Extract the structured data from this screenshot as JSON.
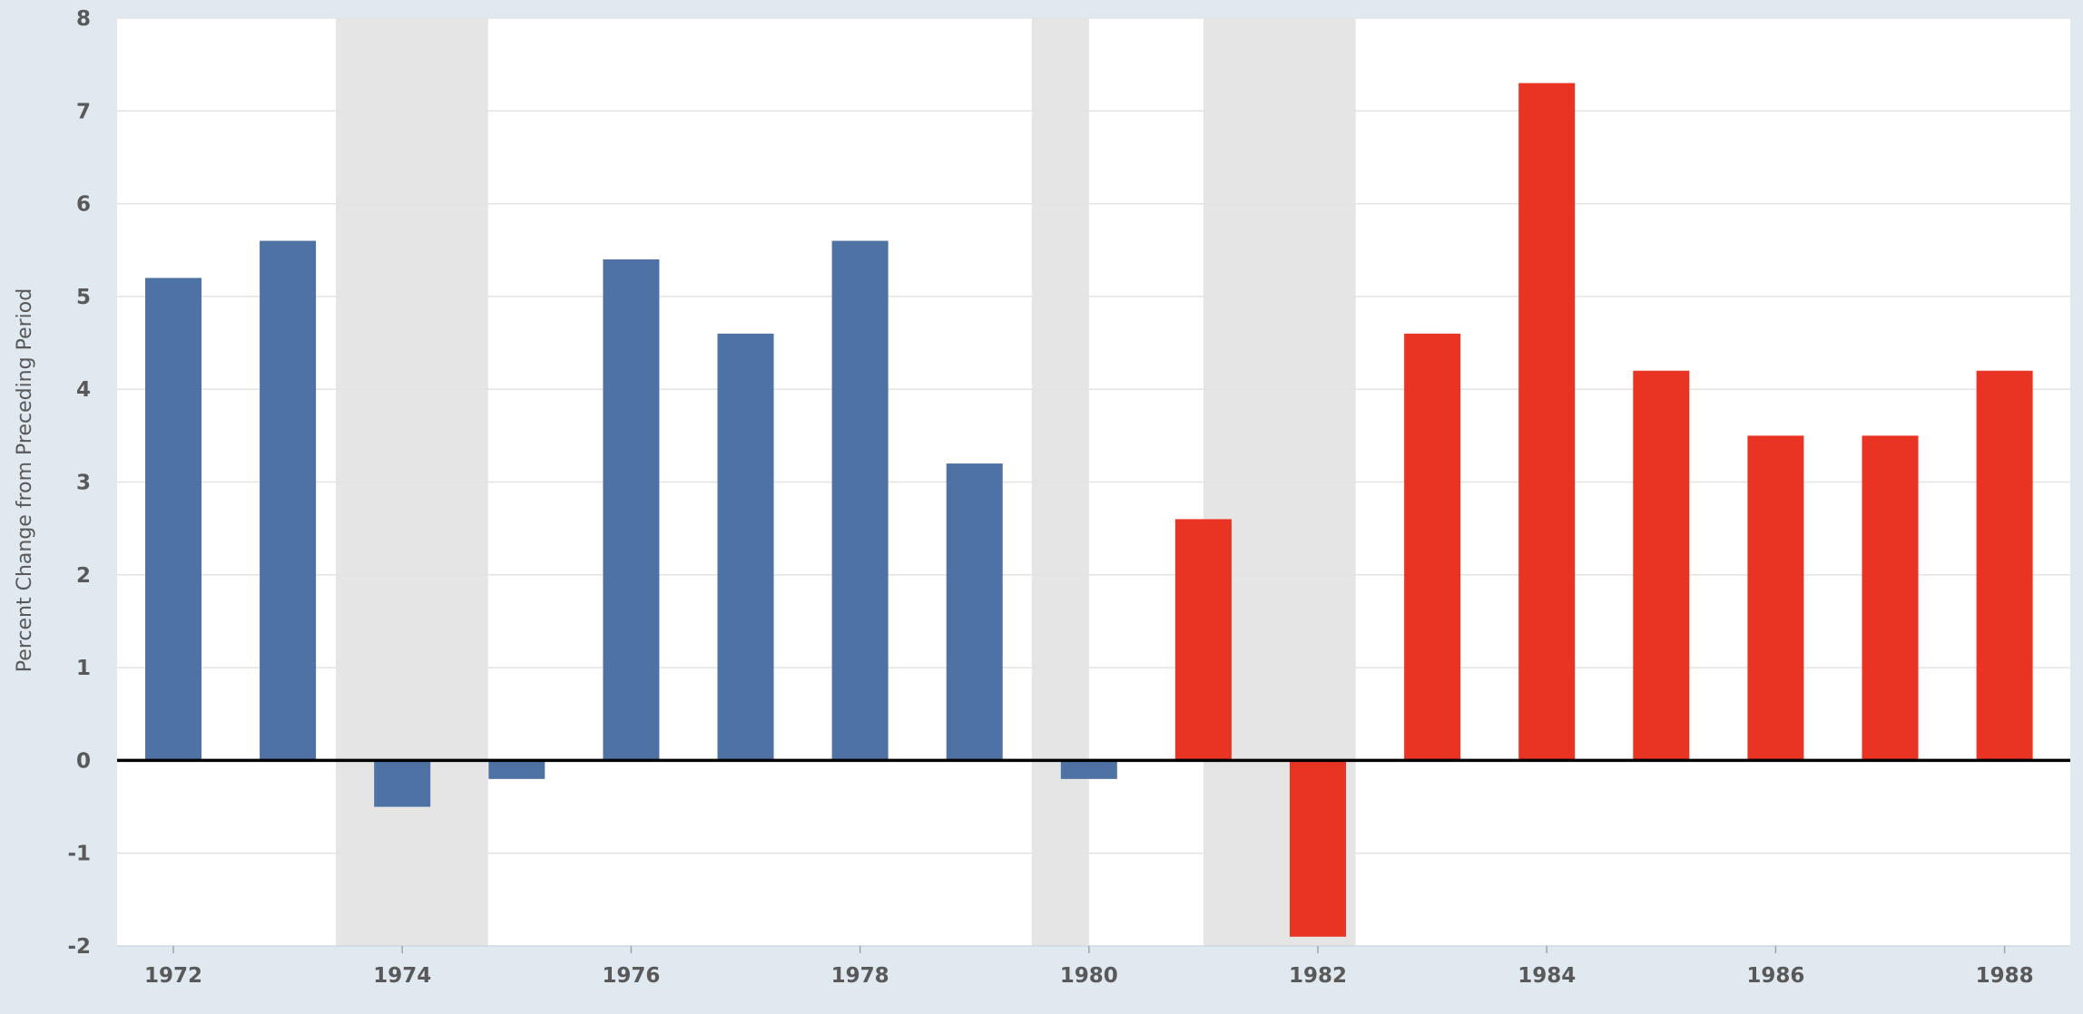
{
  "chart_data": {
    "type": "bar",
    "title": "",
    "xlabel": "",
    "ylabel": "Percent Change from Preceding Period",
    "ylim": [
      -2,
      8
    ],
    "yticks": [
      -2,
      -1,
      0,
      1,
      2,
      3,
      4,
      5,
      6,
      7,
      8
    ],
    "x_tick_labels": [
      "1972",
      "1974",
      "1976",
      "1978",
      "1980",
      "1982",
      "1984",
      "1986",
      "1988"
    ],
    "grid": true,
    "legend": "none",
    "colors": {
      "series_1": "#4f72a4",
      "series_2": "#e93424",
      "recession_shading": "#e5e5e5",
      "plot_background": "#ffffff",
      "page_background": "#e1e9f0",
      "grid": "#e3e3e3",
      "zero_line": "#000000"
    },
    "recessions": [
      {
        "start": 1973.92,
        "end": 1975.25
      },
      {
        "start": 1980.0,
        "end": 1980.5
      },
      {
        "start": 1981.5,
        "end": 1982.83
      }
    ],
    "categories": [
      "1972",
      "1973",
      "1974",
      "1975",
      "1976",
      "1977",
      "1978",
      "1979",
      "1980",
      "1981",
      "1982",
      "1983",
      "1984",
      "1985",
      "1986",
      "1987",
      "1988"
    ],
    "series": [
      {
        "values": [
          5.2,
          5.6,
          -0.5,
          -0.2,
          5.4,
          4.6,
          5.6,
          3.2,
          -0.2,
          null,
          null,
          null,
          null,
          null,
          null,
          null,
          null
        ]
      },
      {
        "values": [
          null,
          null,
          null,
          null,
          null,
          null,
          null,
          null,
          null,
          2.6,
          -1.9,
          4.6,
          7.3,
          4.2,
          3.5,
          3.5,
          4.2
        ]
      }
    ]
  }
}
